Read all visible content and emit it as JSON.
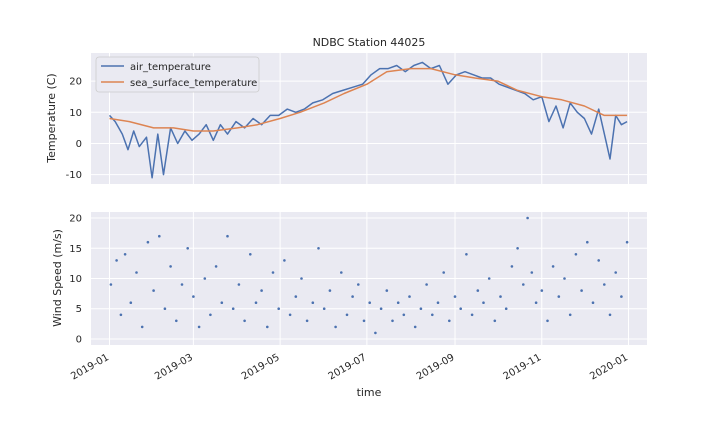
{
  "chart_data": [
    {
      "type": "line",
      "title": "NDBC Station 44025",
      "ylabel": "Temperature (C)",
      "xlabel": "",
      "xlim": [
        "2018-12-19",
        "2020-01-14"
      ],
      "ylim": [
        -13,
        29
      ],
      "x_ticks": [
        "2019-01",
        "2019-03",
        "2019-05",
        "2019-07",
        "2019-09",
        "2019-11",
        "2020-01"
      ],
      "y_ticks": [
        "-10",
        "0",
        "10",
        "20"
      ],
      "grid": true,
      "legend": "top-left",
      "series": [
        {
          "name": "air_temperature",
          "color": "#4c72b0",
          "points": [
            [
              "2019-01-01",
              9
            ],
            [
              "2019-01-05",
              7
            ],
            [
              "2019-01-10",
              3
            ],
            [
              "2019-01-14",
              -2
            ],
            [
              "2019-01-18",
              4
            ],
            [
              "2019-01-22",
              -1
            ],
            [
              "2019-01-27",
              2
            ],
            [
              "2019-01-31",
              -11
            ],
            [
              "2019-02-04",
              3
            ],
            [
              "2019-02-08",
              -10
            ],
            [
              "2019-02-13",
              5
            ],
            [
              "2019-02-18",
              0
            ],
            [
              "2019-02-23",
              4
            ],
            [
              "2019-02-28",
              1
            ],
            [
              "2019-03-05",
              3
            ],
            [
              "2019-03-10",
              6
            ],
            [
              "2019-03-15",
              1
            ],
            [
              "2019-03-20",
              6
            ],
            [
              "2019-03-25",
              3
            ],
            [
              "2019-03-31",
              7
            ],
            [
              "2019-04-06",
              5
            ],
            [
              "2019-04-12",
              8
            ],
            [
              "2019-04-18",
              6
            ],
            [
              "2019-04-24",
              9
            ],
            [
              "2019-04-30",
              9
            ],
            [
              "2019-05-06",
              11
            ],
            [
              "2019-05-12",
              10
            ],
            [
              "2019-05-18",
              11
            ],
            [
              "2019-05-24",
              13
            ],
            [
              "2019-05-31",
              14
            ],
            [
              "2019-06-07",
              16
            ],
            [
              "2019-06-14",
              17
            ],
            [
              "2019-06-21",
              18
            ],
            [
              "2019-06-28",
              19
            ],
            [
              "2019-07-04",
              22
            ],
            [
              "2019-07-10",
              24
            ],
            [
              "2019-07-16",
              24
            ],
            [
              "2019-07-22",
              25
            ],
            [
              "2019-07-28",
              23
            ],
            [
              "2019-08-03",
              25
            ],
            [
              "2019-08-09",
              26
            ],
            [
              "2019-08-15",
              24
            ],
            [
              "2019-08-21",
              25
            ],
            [
              "2019-08-27",
              19
            ],
            [
              "2019-09-02",
              22
            ],
            [
              "2019-09-08",
              23
            ],
            [
              "2019-09-14",
              22
            ],
            [
              "2019-09-20",
              21
            ],
            [
              "2019-09-26",
              21
            ],
            [
              "2019-10-02",
              19
            ],
            [
              "2019-10-08",
              18
            ],
            [
              "2019-10-14",
              17
            ],
            [
              "2019-10-20",
              16
            ],
            [
              "2019-10-26",
              14
            ],
            [
              "2019-11-01",
              15
            ],
            [
              "2019-11-06",
              7
            ],
            [
              "2019-11-11",
              12
            ],
            [
              "2019-11-16",
              5
            ],
            [
              "2019-11-21",
              13
            ],
            [
              "2019-11-26",
              10
            ],
            [
              "2019-12-01",
              8
            ],
            [
              "2019-12-06",
              3
            ],
            [
              "2019-12-11",
              11
            ],
            [
              "2019-12-16",
              1
            ],
            [
              "2019-12-19",
              -5
            ],
            [
              "2019-12-23",
              9
            ],
            [
              "2019-12-27",
              6
            ],
            [
              "2019-12-31",
              7
            ]
          ]
        },
        {
          "name": "sea_surface_temperature",
          "color": "#dd8452",
          "points": [
            [
              "2019-01-01",
              8
            ],
            [
              "2019-01-15",
              7
            ],
            [
              "2019-02-01",
              5
            ],
            [
              "2019-02-15",
              5
            ],
            [
              "2019-03-01",
              4
            ],
            [
              "2019-03-15",
              4
            ],
            [
              "2019-04-01",
              5
            ],
            [
              "2019-04-15",
              6
            ],
            [
              "2019-05-01",
              8
            ],
            [
              "2019-05-15",
              10
            ],
            [
              "2019-06-01",
              13
            ],
            [
              "2019-06-15",
              16
            ],
            [
              "2019-07-01",
              19
            ],
            [
              "2019-07-15",
              23
            ],
            [
              "2019-08-01",
              24
            ],
            [
              "2019-08-15",
              24
            ],
            [
              "2019-09-01",
              22
            ],
            [
              "2019-09-15",
              21
            ],
            [
              "2019-10-01",
              20
            ],
            [
              "2019-10-15",
              17
            ],
            [
              "2019-11-01",
              15
            ],
            [
              "2019-11-15",
              14
            ],
            [
              "2019-12-01",
              12
            ],
            [
              "2019-12-15",
              9
            ],
            [
              "2019-12-31",
              9
            ]
          ]
        }
      ]
    },
    {
      "type": "scatter",
      "title": "",
      "ylabel": "Wind Speed (m/s)",
      "xlabel": "time",
      "xlim": [
        "2018-12-19",
        "2020-01-14"
      ],
      "ylim": [
        -1,
        21
      ],
      "x_ticks": [
        "2019-01",
        "2019-03",
        "2019-05",
        "2019-07",
        "2019-09",
        "2019-11",
        "2020-01"
      ],
      "y_ticks": [
        "0",
        "5",
        "10",
        "15",
        "20"
      ],
      "grid": true,
      "series": [
        {
          "color": "#4c72b0",
          "points": [
            [
              "2019-01-02",
              9
            ],
            [
              "2019-01-06",
              13
            ],
            [
              "2019-01-09",
              4
            ],
            [
              "2019-01-12",
              14
            ],
            [
              "2019-01-16",
              6
            ],
            [
              "2019-01-20",
              11
            ],
            [
              "2019-01-24",
              2
            ],
            [
              "2019-01-28",
              16
            ],
            [
              "2019-02-01",
              8
            ],
            [
              "2019-02-05",
              17
            ],
            [
              "2019-02-09",
              5
            ],
            [
              "2019-02-13",
              12
            ],
            [
              "2019-02-17",
              3
            ],
            [
              "2019-02-21",
              9
            ],
            [
              "2019-02-25",
              15
            ],
            [
              "2019-03-01",
              7
            ],
            [
              "2019-03-05",
              2
            ],
            [
              "2019-03-09",
              10
            ],
            [
              "2019-03-13",
              4
            ],
            [
              "2019-03-17",
              12
            ],
            [
              "2019-03-21",
              6
            ],
            [
              "2019-03-25",
              17
            ],
            [
              "2019-03-29",
              5
            ],
            [
              "2019-04-02",
              9
            ],
            [
              "2019-04-06",
              3
            ],
            [
              "2019-04-10",
              14
            ],
            [
              "2019-04-14",
              6
            ],
            [
              "2019-04-18",
              8
            ],
            [
              "2019-04-22",
              2
            ],
            [
              "2019-04-26",
              11
            ],
            [
              "2019-04-30",
              5
            ],
            [
              "2019-05-04",
              13
            ],
            [
              "2019-05-08",
              4
            ],
            [
              "2019-05-12",
              7
            ],
            [
              "2019-05-16",
              10
            ],
            [
              "2019-05-20",
              3
            ],
            [
              "2019-05-24",
              6
            ],
            [
              "2019-05-28",
              15
            ],
            [
              "2019-06-01",
              5
            ],
            [
              "2019-06-05",
              8
            ],
            [
              "2019-06-09",
              2
            ],
            [
              "2019-06-13",
              11
            ],
            [
              "2019-06-17",
              4
            ],
            [
              "2019-06-21",
              7
            ],
            [
              "2019-06-25",
              9
            ],
            [
              "2019-06-29",
              3
            ],
            [
              "2019-07-03",
              6
            ],
            [
              "2019-07-07",
              1
            ],
            [
              "2019-07-11",
              5
            ],
            [
              "2019-07-15",
              8
            ],
            [
              "2019-07-19",
              3
            ],
            [
              "2019-07-23",
              6
            ],
            [
              "2019-07-27",
              4
            ],
            [
              "2019-07-31",
              7
            ],
            [
              "2019-08-04",
              2
            ],
            [
              "2019-08-08",
              5
            ],
            [
              "2019-08-12",
              9
            ],
            [
              "2019-08-16",
              4
            ],
            [
              "2019-08-20",
              6
            ],
            [
              "2019-08-24",
              11
            ],
            [
              "2019-08-28",
              3
            ],
            [
              "2019-09-01",
              7
            ],
            [
              "2019-09-05",
              5
            ],
            [
              "2019-09-09",
              14
            ],
            [
              "2019-09-13",
              4
            ],
            [
              "2019-09-17",
              8
            ],
            [
              "2019-09-21",
              6
            ],
            [
              "2019-09-25",
              10
            ],
            [
              "2019-09-29",
              3
            ],
            [
              "2019-10-03",
              7
            ],
            [
              "2019-10-07",
              5
            ],
            [
              "2019-10-11",
              12
            ],
            [
              "2019-10-15",
              15
            ],
            [
              "2019-10-19",
              9
            ],
            [
              "2019-10-22",
              20
            ],
            [
              "2019-10-25",
              11
            ],
            [
              "2019-10-28",
              6
            ],
            [
              "2019-11-01",
              8
            ],
            [
              "2019-11-05",
              3
            ],
            [
              "2019-11-09",
              12
            ],
            [
              "2019-11-13",
              7
            ],
            [
              "2019-11-17",
              10
            ],
            [
              "2019-11-21",
              4
            ],
            [
              "2019-11-25",
              14
            ],
            [
              "2019-11-29",
              8
            ],
            [
              "2019-12-03",
              16
            ],
            [
              "2019-12-07",
              6
            ],
            [
              "2019-12-11",
              13
            ],
            [
              "2019-12-15",
              9
            ],
            [
              "2019-12-19",
              4
            ],
            [
              "2019-12-23",
              11
            ],
            [
              "2019-12-27",
              7
            ],
            [
              "2019-12-31",
              16
            ]
          ]
        }
      ]
    }
  ]
}
